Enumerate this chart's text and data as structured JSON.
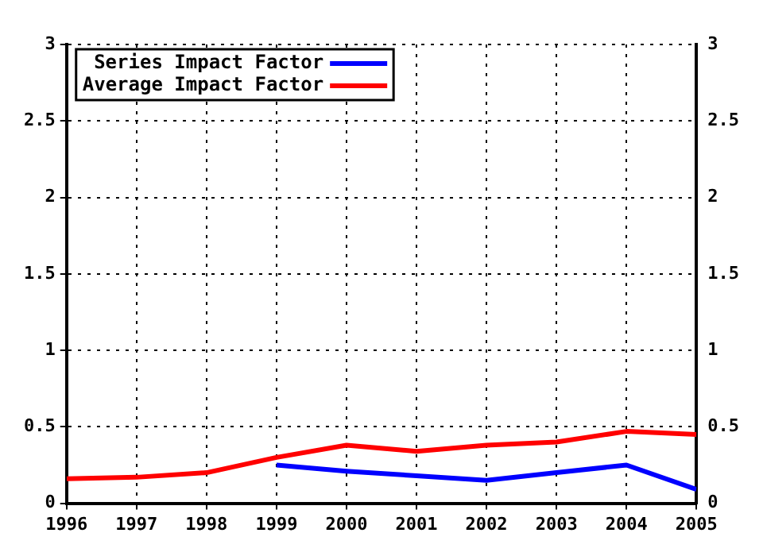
{
  "chart_data": {
    "type": "line",
    "x": [
      1996,
      1997,
      1998,
      1999,
      2000,
      2001,
      2002,
      2003,
      2004,
      2005
    ],
    "series": [
      {
        "name": "Series Impact Factor",
        "color": "#0000ff",
        "values": [
          null,
          null,
          null,
          0.25,
          0.21,
          0.18,
          0.15,
          0.2,
          0.25,
          0.09
        ]
      },
      {
        "name": "Average Impact Factor",
        "color": "#ff0000",
        "values": [
          0.16,
          0.17,
          0.2,
          0.3,
          0.38,
          0.34,
          0.38,
          0.4,
          0.47,
          0.45
        ]
      }
    ],
    "xlim": [
      1996,
      2005
    ],
    "xticks": [
      1996,
      1997,
      1998,
      1999,
      2000,
      2001,
      2002,
      2003,
      2004,
      2005
    ],
    "ylim": [
      0,
      3
    ],
    "yticks": [
      0,
      0.5,
      1,
      1.5,
      2,
      2.5,
      3
    ],
    "y2lim": [
      0,
      3
    ],
    "y2ticks": [
      0,
      0.5,
      1,
      1.5,
      2,
      2.5,
      3
    ],
    "grid": true,
    "legend": "top left",
    "marker": "none",
    "line_style": "solid"
  }
}
